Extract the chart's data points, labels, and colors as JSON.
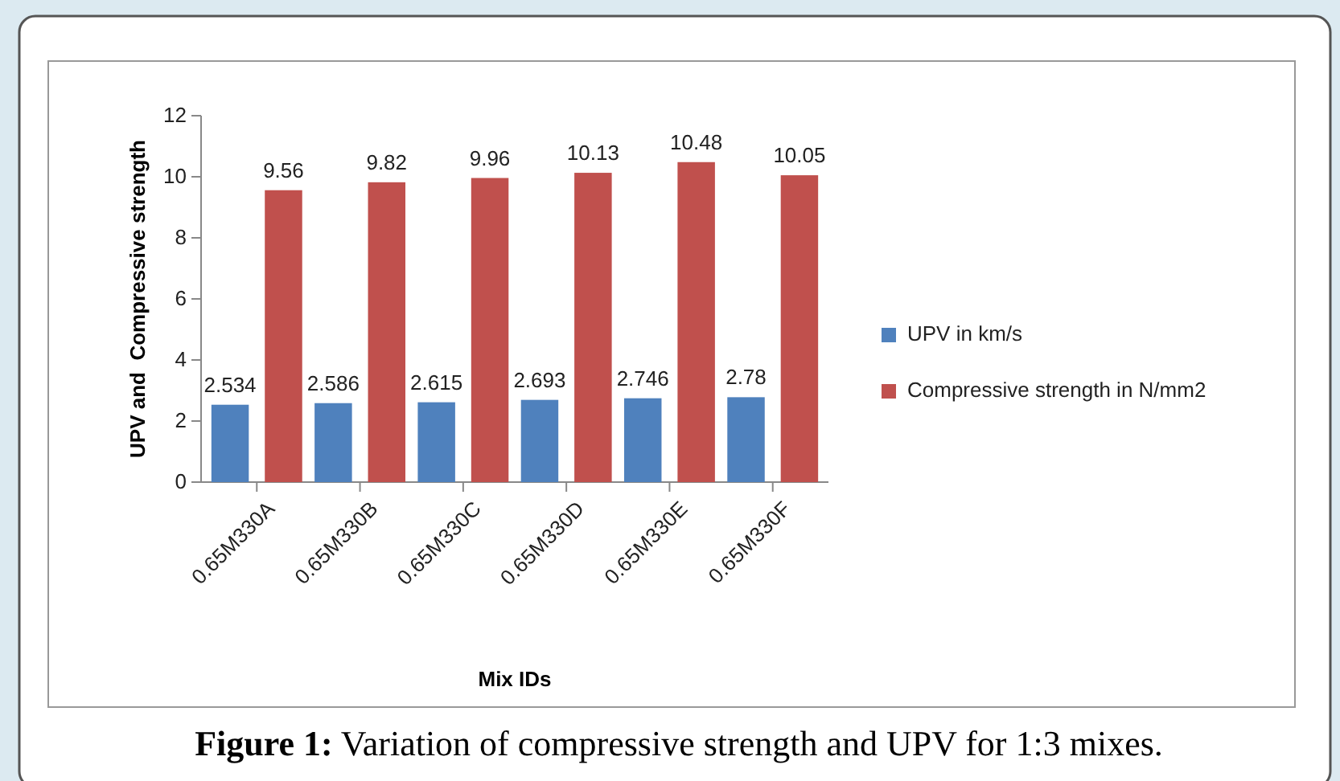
{
  "chart_data": {
    "type": "bar",
    "title": "Figure 1: Variation of compressive strength and UPV for 1:3 mixes.",
    "xlabel": "Mix IDs",
    "ylabel": "UPV and  Compressive strength",
    "categories": [
      "0.65M330A",
      "0.65M330B",
      "0.65M330C",
      "0.65M330D",
      "0.65M330E",
      "0.65M330F"
    ],
    "series": [
      {
        "name": "UPV in km/s",
        "color": "#4f81bd",
        "values": [
          2.534,
          2.586,
          2.615,
          2.693,
          2.746,
          2.78
        ]
      },
      {
        "name": "Compressive strength in N/mm2",
        "color": "#c0504d",
        "values": [
          9.56,
          9.82,
          9.96,
          10.13,
          10.48,
          10.05
        ]
      }
    ],
    "ylim": [
      0,
      12
    ],
    "yticks": [
      0,
      2,
      4,
      6,
      8,
      10,
      12
    ],
    "grid": false,
    "legend": "right",
    "data_labels": true
  }
}
